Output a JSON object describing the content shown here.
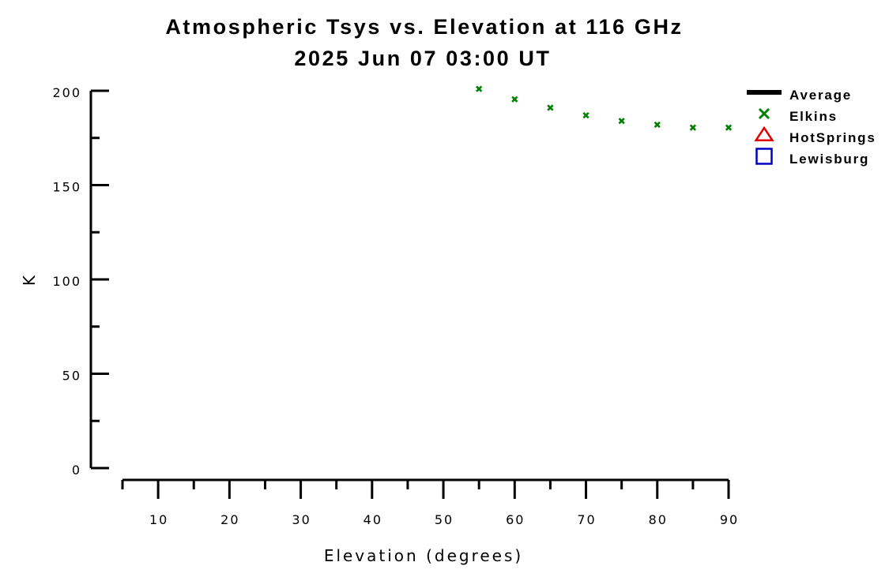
{
  "chart_data": {
    "type": "scatter",
    "title": "Atmospheric Tsys vs. Elevation at 116 GHz",
    "subtitle": "2025 Jun 07 03:00 UT",
    "xlabel": "Elevation (degrees)",
    "ylabel": "K",
    "xlim": [
      5,
      90
    ],
    "ylim": [
      0,
      200
    ],
    "x_ticks": [
      10,
      20,
      30,
      40,
      50,
      60,
      70,
      80,
      90
    ],
    "x_tick_labels": [
      "10",
      "20",
      "30",
      "40",
      "50",
      "60",
      "70",
      "80",
      "90"
    ],
    "y_ticks": [
      0,
      50,
      100,
      150,
      200
    ],
    "y_tick_labels": [
      "0",
      "50",
      "100",
      "150",
      "200"
    ],
    "grid": false,
    "legend_position": "top-right",
    "series": [
      {
        "name": "Average",
        "marker": "line",
        "color": "#000000",
        "x": [],
        "y": []
      },
      {
        "name": "Elkins",
        "marker": "x",
        "color": "#008000",
        "x": [
          55,
          60,
          65,
          70,
          75,
          80,
          85,
          90
        ],
        "y": [
          201,
          195.5,
          191,
          187,
          184,
          182,
          180.5,
          180.5
        ]
      },
      {
        "name": "HotSprings",
        "marker": "triangle",
        "color": "#e00000",
        "x": [],
        "y": []
      },
      {
        "name": "Lewisburg",
        "marker": "square",
        "color": "#0000c0",
        "x": [],
        "y": []
      }
    ]
  }
}
